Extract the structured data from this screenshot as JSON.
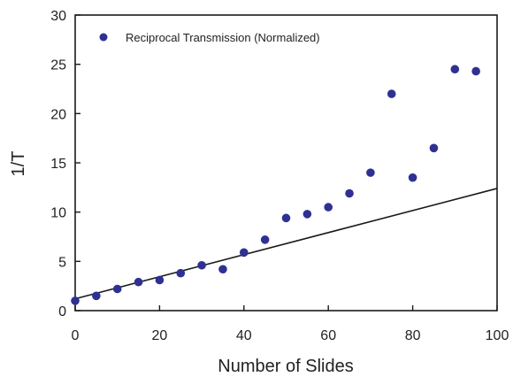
{
  "colors": {
    "marker": "#2e3192",
    "line": "#1a1a1a",
    "axis": "#1a1a1a",
    "text": "#222222"
  },
  "chart_data": {
    "type": "scatter",
    "xlabel": "Number of Slides",
    "ylabel": "1/T",
    "xlim": [
      0,
      100
    ],
    "ylim": [
      0,
      30
    ],
    "x_ticks": [
      "0",
      "20",
      "40",
      "60",
      "80",
      "100"
    ],
    "y_ticks": [
      "0",
      "5",
      "10",
      "15",
      "20",
      "25",
      "30"
    ],
    "grid": false,
    "legend_position": "top-left",
    "series": [
      {
        "name": "Reciprocal Transmission (Normalized)",
        "marker": "circle",
        "x": [
          0,
          5,
          10,
          15,
          20,
          25,
          30,
          35,
          40,
          45,
          50,
          55,
          60,
          65,
          70,
          75,
          80,
          85,
          90,
          95
        ],
        "y": [
          1.0,
          1.5,
          2.2,
          2.9,
          3.1,
          3.8,
          4.6,
          4.2,
          5.9,
          7.2,
          9.4,
          9.8,
          10.5,
          11.9,
          14.0,
          22.0,
          13.5,
          16.5,
          24.5,
          24.3
        ]
      }
    ],
    "trendline": {
      "x": [
        0,
        100
      ],
      "y": [
        1.2,
        12.4
      ]
    }
  }
}
